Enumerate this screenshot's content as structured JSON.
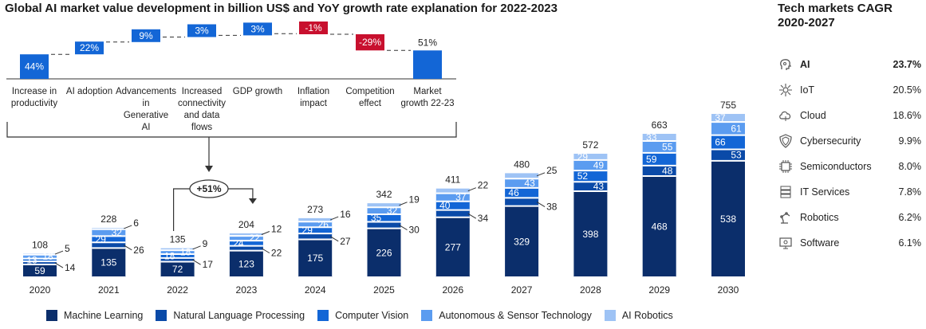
{
  "title": "Global AI market value development in billion US$ and YoY growth rate explanation for 2022-2023",
  "side": {
    "title": "Tech markets CAGR 2020-2027",
    "items": [
      {
        "name": "AI",
        "value": "23.7%",
        "icon": "ai-head-icon",
        "highlight": true
      },
      {
        "name": "IoT",
        "value": "20.5%",
        "icon": "iot-hub-icon",
        "highlight": false
      },
      {
        "name": "Cloud",
        "value": "18.6%",
        "icon": "cloud-icon",
        "highlight": false
      },
      {
        "name": "Cybersecurity",
        "value": "9.9%",
        "icon": "shield-icon",
        "highlight": false
      },
      {
        "name": "Semiconductors",
        "value": "8.0%",
        "icon": "chip-icon",
        "highlight": false
      },
      {
        "name": "IT Services",
        "value": "7.8%",
        "icon": "server-icon",
        "highlight": false
      },
      {
        "name": "Robotics",
        "value": "6.2%",
        "icon": "robot-arm-icon",
        "highlight": false
      },
      {
        "name": "Software",
        "value": "6.1%",
        "icon": "software-icon",
        "highlight": false
      }
    ]
  },
  "colors": {
    "ml": "#0b2e6b",
    "nlp": "#0a4aa8",
    "cv": "#1366d6",
    "ast": "#5b9cf0",
    "robo": "#9ec3f5",
    "negative": "#c8102e",
    "text": "#222222",
    "connector": "#333333"
  },
  "chart_data": [
    {
      "type": "bar",
      "stacked": true,
      "title": "Global AI market value development in billion US$",
      "categories": [
        "2020",
        "2021",
        "2022",
        "2023",
        "2024",
        "2025",
        "2026",
        "2027",
        "2028",
        "2029",
        "2030"
      ],
      "series": [
        {
          "name": "Machine Learning",
          "values": [
            59,
            135,
            72,
            123,
            175,
            226,
            277,
            329,
            398,
            468,
            538
          ]
        },
        {
          "name": "Natural Language Processing",
          "values": [
            14,
            26,
            17,
            22,
            27,
            30,
            34,
            38,
            43,
            48,
            53
          ]
        },
        {
          "name": "Computer Vision",
          "values": [
            13,
            29,
            18,
            24,
            29,
            35,
            40,
            46,
            52,
            59,
            66
          ]
        },
        {
          "name": "Autonomous & Sensor Technology",
          "values": [
            18,
            32,
            18,
            22,
            26,
            32,
            37,
            43,
            49,
            55,
            61
          ]
        },
        {
          "name": "AI Robotics",
          "values": [
            5,
            6,
            9,
            12,
            16,
            19,
            22,
            25,
            29,
            33,
            37
          ]
        }
      ],
      "totals": [
        108,
        228,
        135,
        204,
        273,
        342,
        411,
        480,
        572,
        663,
        755
      ],
      "annotation": "+51%",
      "legend_position": "bottom"
    },
    {
      "type": "waterfall",
      "title": "YoY growth rate explanation for 2022-2023",
      "categories": [
        "Increase in productivity",
        "AI adoption",
        "Advancements in Generative AI",
        "Increased connectivity and data flows",
        "GDP growth",
        "Inflation impact",
        "Competition effect",
        "Market growth 22-23"
      ],
      "values": [
        44,
        22,
        9,
        3,
        3,
        -1,
        -29,
        51
      ],
      "labels": [
        "44%",
        "22%",
        "9%",
        "3%",
        "3%",
        "-1%",
        "-29%",
        "51%"
      ]
    }
  ]
}
